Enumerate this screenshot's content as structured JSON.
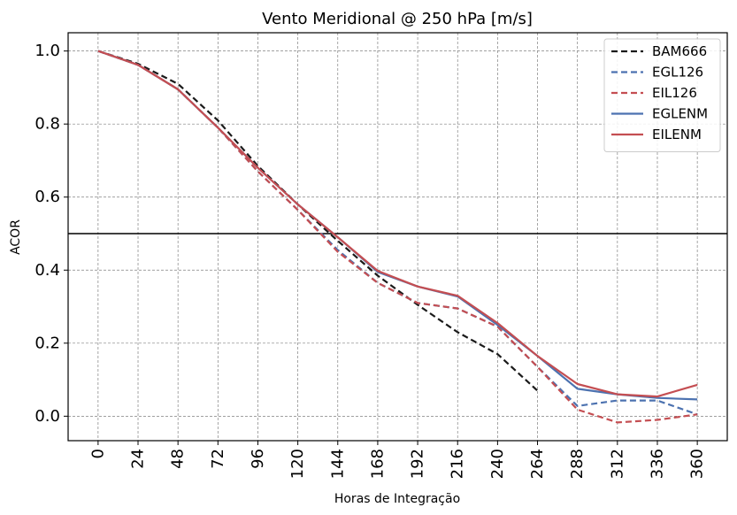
{
  "chart_data": {
    "type": "line",
    "title": "Vento Meridional @ 250 hPa [m/s]",
    "xlabel": "Horas de Integração",
    "ylabel": "ACOR",
    "x": [
      0,
      24,
      48,
      72,
      96,
      120,
      144,
      168,
      192,
      216,
      240,
      264,
      288,
      312,
      336,
      360
    ],
    "x_tick_labels": [
      "0",
      "24",
      "48",
      "72",
      "96",
      "120",
      "144",
      "168",
      "192",
      "216",
      "240",
      "264",
      "288",
      "312",
      "336",
      "360"
    ],
    "y_ticks": [
      0.0,
      0.2,
      0.4,
      0.6,
      0.8,
      1.0
    ],
    "y_tick_labels": [
      "0.0",
      "0.2",
      "0.4",
      "0.6",
      "0.8",
      "1.0"
    ],
    "xlim": [
      -18,
      378
    ],
    "ylim": [
      -0.067,
      1.05
    ],
    "reference_line": 0.5,
    "grid": true,
    "legend_position": "top-right",
    "series": [
      {
        "name": "BAM666",
        "color": "#1a1a1a",
        "dashed": true,
        "values": [
          1.0,
          0.965,
          0.91,
          0.81,
          0.685,
          0.58,
          0.48,
          0.385,
          0.305,
          0.23,
          0.17,
          0.07,
          null,
          null,
          null,
          null
        ]
      },
      {
        "name": "EGL126",
        "color": "#4c72b0",
        "dashed": true,
        "values": [
          1.0,
          0.962,
          0.895,
          0.79,
          0.67,
          0.565,
          0.455,
          0.365,
          0.31,
          0.295,
          0.245,
          0.135,
          0.028,
          0.043,
          0.043,
          0.005
        ]
      },
      {
        "name": "EIL126",
        "color": "#c44e52",
        "dashed": true,
        "values": [
          1.0,
          0.962,
          0.895,
          0.79,
          0.67,
          0.565,
          0.45,
          0.365,
          0.31,
          0.295,
          0.245,
          0.135,
          0.018,
          -0.017,
          -0.01,
          0.005
        ]
      },
      {
        "name": "EGLENM",
        "color": "#4c72b0",
        "dashed": false,
        "values": [
          1.0,
          0.962,
          0.895,
          0.79,
          0.68,
          0.58,
          0.49,
          0.395,
          0.355,
          0.328,
          0.25,
          0.165,
          0.075,
          0.06,
          0.05,
          0.046
        ]
      },
      {
        "name": "EILENM",
        "color": "#c44e52",
        "dashed": false,
        "values": [
          1.0,
          0.962,
          0.895,
          0.79,
          0.68,
          0.58,
          0.49,
          0.398,
          0.355,
          0.33,
          0.255,
          0.165,
          0.088,
          0.06,
          0.054,
          0.086
        ]
      }
    ]
  }
}
